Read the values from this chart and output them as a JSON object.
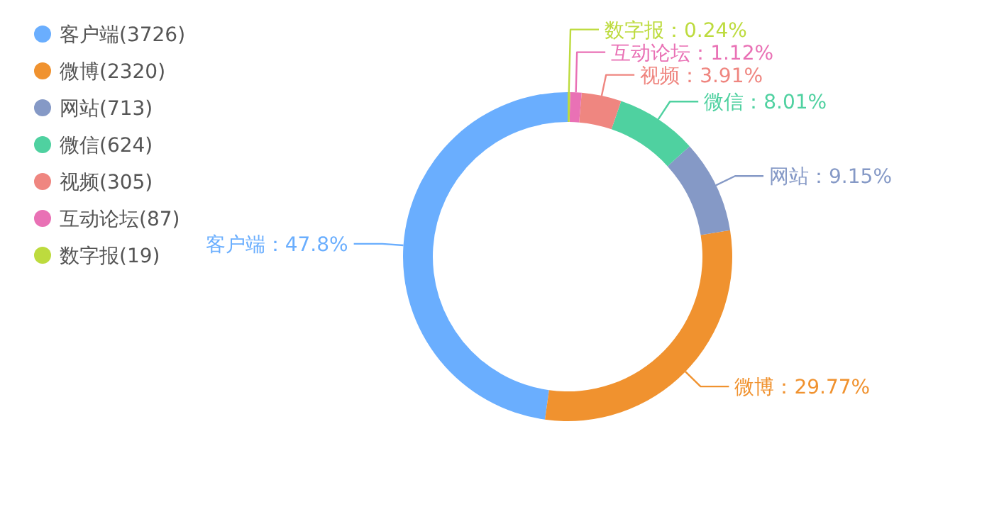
{
  "chart_data": {
    "type": "donut",
    "categories": [
      "客户端(3726)",
      "微博(2320)",
      "网站(713)",
      "微信(624)",
      "视频(305)",
      "互动论坛(87)",
      "数字报(19)"
    ],
    "values": [
      47.8,
      29.77,
      9.15,
      8.01,
      3.91,
      1.12,
      0.24
    ],
    "colors": [
      "#6aaefe",
      "#f0922f",
      "#8599c6",
      "#4fd1a0",
      "#ef8680",
      "#e971b5",
      "#bddb3e"
    ],
    "value_labels": [
      "客户端：47.8%",
      "微博：29.77%",
      "网站：9.15%",
      "微信：8.01%",
      "视频：3.91%",
      "互动论坛：1.12%",
      "数字报：0.24%"
    ],
    "legend": "top left"
  }
}
